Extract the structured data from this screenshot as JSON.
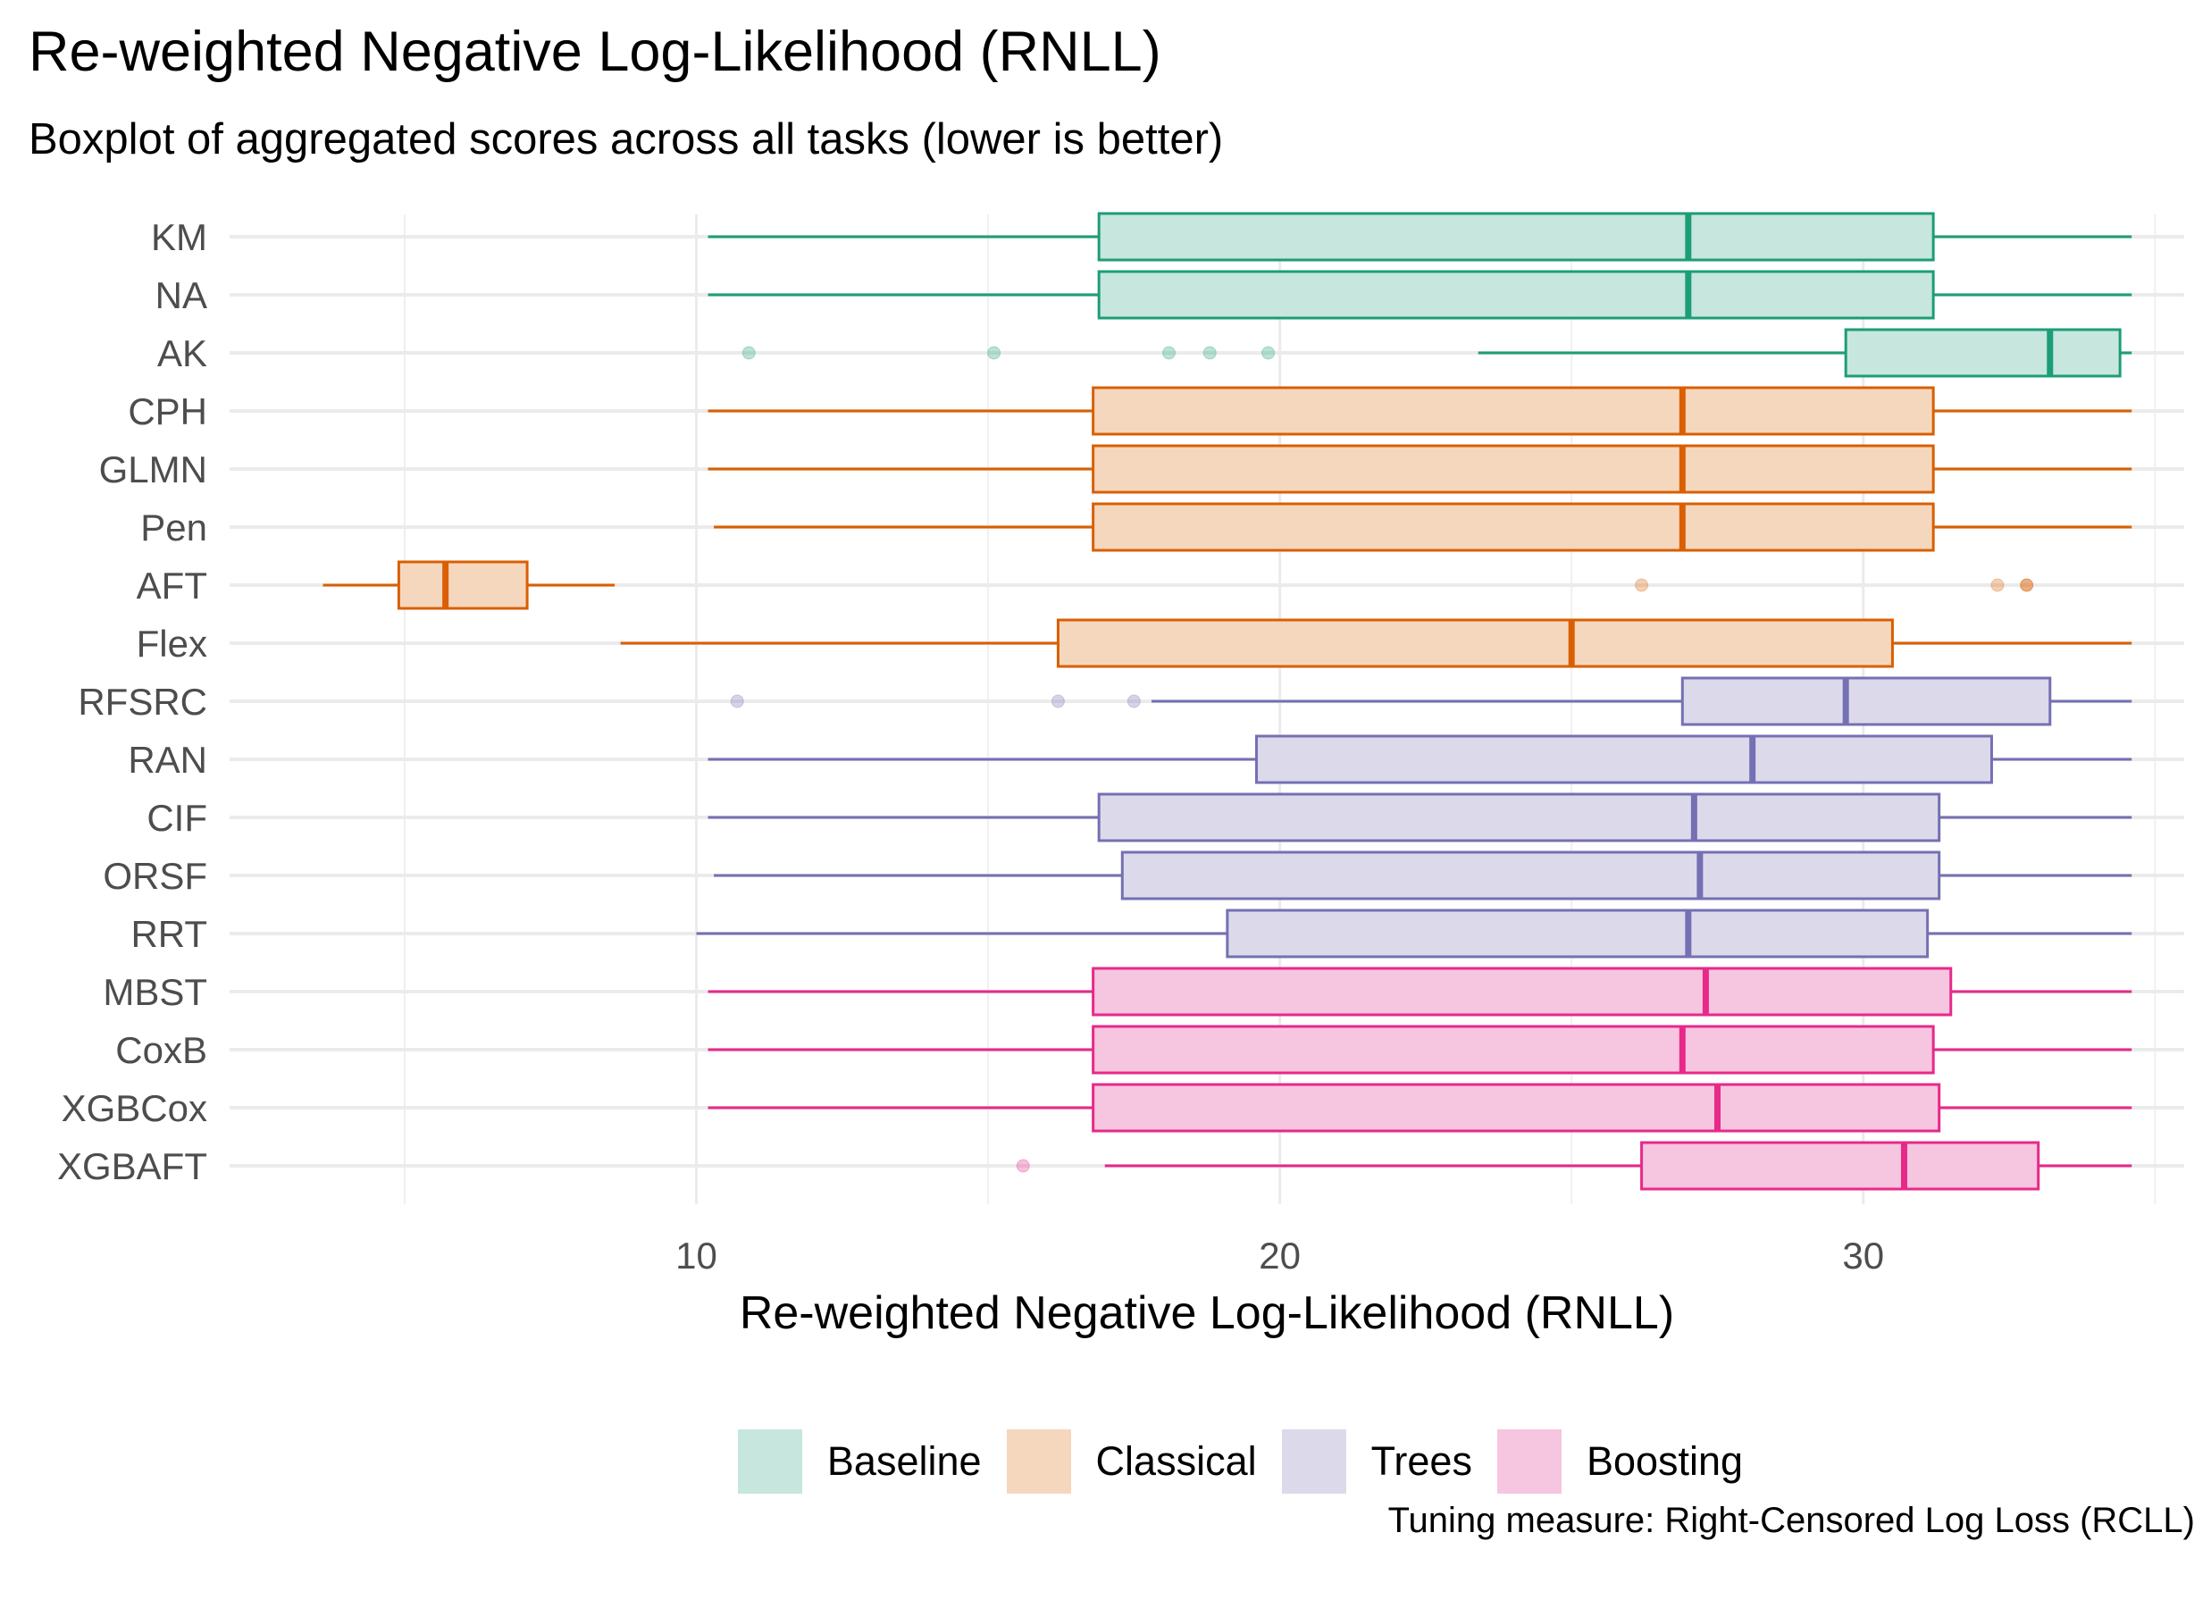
{
  "title": "Re-weighted Negative Log-Likelihood (RNLL)",
  "subtitle": "Boxplot of aggregated scores across all tasks (lower is better)",
  "caption": "Tuning measure: Right-Censored Log Loss (RCLL)",
  "legend": [
    {
      "label": "Baseline",
      "fill": "#c7e6dd"
    },
    {
      "label": "Classical",
      "fill": "#f5d7be"
    },
    {
      "label": "Trees",
      "fill": "#dcdaea"
    },
    {
      "label": "Boosting",
      "fill": "#f6c5df"
    }
  ],
  "colors": {
    "Baseline": {
      "stroke": "#1b9e77",
      "fill": "#c7e6dd"
    },
    "Classical": {
      "stroke": "#d95f02",
      "fill": "#f5d7be"
    },
    "Trees": {
      "stroke": "#7570b3",
      "fill": "#dcdaea"
    },
    "Boosting": {
      "stroke": "#e7298a",
      "fill": "#f6c5df"
    }
  },
  "chart_data": {
    "type": "boxplot",
    "title": "Re-weighted Negative Log-Likelihood (RNLL)",
    "subtitle": "Boxplot of aggregated scores across all tasks (lower is better)",
    "xlabel": "Re-weighted Negative Log-Likelihood (RNLL)",
    "ylabel": "",
    "xlim": [
      2,
      35.5
    ],
    "xticks": [
      10,
      20,
      30
    ],
    "grid": true,
    "legend_position": "bottom",
    "series": [
      {
        "name": "KM",
        "group": "Baseline",
        "whisker_low": 10.2,
        "q1": 16.9,
        "median": 27.0,
        "q3": 31.2,
        "whisker_high": 34.6,
        "outliers": []
      },
      {
        "name": "NA",
        "group": "Baseline",
        "whisker_low": 10.2,
        "q1": 16.9,
        "median": 27.0,
        "q3": 31.2,
        "whisker_high": 34.6,
        "outliers": []
      },
      {
        "name": "AK",
        "group": "Baseline",
        "whisker_low": 23.4,
        "q1": 29.7,
        "median": 33.2,
        "q3": 34.4,
        "whisker_high": 34.6,
        "outliers": [
          10.9,
          15.1,
          18.1,
          18.8,
          19.8
        ]
      },
      {
        "name": "CPH",
        "group": "Classical",
        "whisker_low": 10.2,
        "q1": 16.8,
        "median": 26.9,
        "q3": 31.2,
        "whisker_high": 34.6,
        "outliers": []
      },
      {
        "name": "GLMN",
        "group": "Classical",
        "whisker_low": 10.2,
        "q1": 16.8,
        "median": 26.9,
        "q3": 31.2,
        "whisker_high": 34.6,
        "outliers": []
      },
      {
        "name": "Pen",
        "group": "Classical",
        "whisker_low": 10.3,
        "q1": 16.8,
        "median": 26.9,
        "q3": 31.2,
        "whisker_high": 34.6,
        "outliers": []
      },
      {
        "name": "AFT",
        "group": "Classical",
        "whisker_low": 3.6,
        "q1": 4.9,
        "median": 5.7,
        "q3": 7.1,
        "whisker_high": 8.6,
        "outliers": [
          26.2,
          32.3,
          32.8,
          32.8
        ]
      },
      {
        "name": "Flex",
        "group": "Classical",
        "whisker_low": 8.7,
        "q1": 16.2,
        "median": 25.0,
        "q3": 30.5,
        "whisker_high": 34.6,
        "outliers": []
      },
      {
        "name": "RFSRC",
        "group": "Trees",
        "whisker_low": 17.8,
        "q1": 26.9,
        "median": 29.7,
        "q3": 33.2,
        "whisker_high": 34.6,
        "outliers": [
          10.7,
          16.2,
          17.5
        ]
      },
      {
        "name": "RAN",
        "group": "Trees",
        "whisker_low": 10.2,
        "q1": 19.6,
        "median": 28.1,
        "q3": 32.2,
        "whisker_high": 34.6,
        "outliers": []
      },
      {
        "name": "CIF",
        "group": "Trees",
        "whisker_low": 10.2,
        "q1": 16.9,
        "median": 27.1,
        "q3": 31.3,
        "whisker_high": 34.6,
        "outliers": []
      },
      {
        "name": "ORSF",
        "group": "Trees",
        "whisker_low": 10.3,
        "q1": 17.3,
        "median": 27.2,
        "q3": 31.3,
        "whisker_high": 34.6,
        "outliers": []
      },
      {
        "name": "RRT",
        "group": "Trees",
        "whisker_low": 10.0,
        "q1": 19.1,
        "median": 27.0,
        "q3": 31.1,
        "whisker_high": 34.6,
        "outliers": []
      },
      {
        "name": "MBST",
        "group": "Boosting",
        "whisker_low": 10.2,
        "q1": 16.8,
        "median": 27.3,
        "q3": 31.5,
        "whisker_high": 34.6,
        "outliers": []
      },
      {
        "name": "CoxB",
        "group": "Boosting",
        "whisker_low": 10.2,
        "q1": 16.8,
        "median": 26.9,
        "q3": 31.2,
        "whisker_high": 34.6,
        "outliers": []
      },
      {
        "name": "XGBCox",
        "group": "Boosting",
        "whisker_low": 10.2,
        "q1": 16.8,
        "median": 27.5,
        "q3": 31.3,
        "whisker_high": 34.6,
        "outliers": []
      },
      {
        "name": "XGBAFT",
        "group": "Boosting",
        "whisker_low": 17.0,
        "q1": 26.2,
        "median": 30.7,
        "q3": 33.0,
        "whisker_high": 34.6,
        "outliers": [
          15.6
        ]
      }
    ]
  }
}
